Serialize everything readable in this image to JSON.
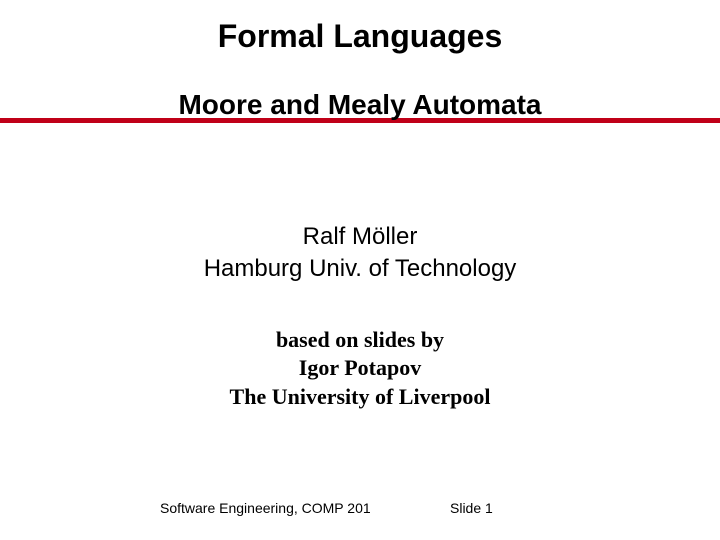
{
  "slide": {
    "title": "Formal Languages",
    "subtitle": "Moore and Mealy Automata",
    "author_line1": "Ralf Möller",
    "author_line2": "Hamburg Univ. of Technology",
    "credits_line1": "based on slides by",
    "credits_line2": "Igor Potapov",
    "credits_line3": "The University of Liverpool",
    "footer_left": "Software Engineering, COMP 201",
    "footer_right": "Slide 1",
    "rule_color": "#c00018",
    "background_color": "#ffffff",
    "title_fontsize": 32,
    "subtitle_fontsize": 28,
    "author_fontsize": 24,
    "credits_fontsize": 22,
    "footer_fontsize": 14
  }
}
